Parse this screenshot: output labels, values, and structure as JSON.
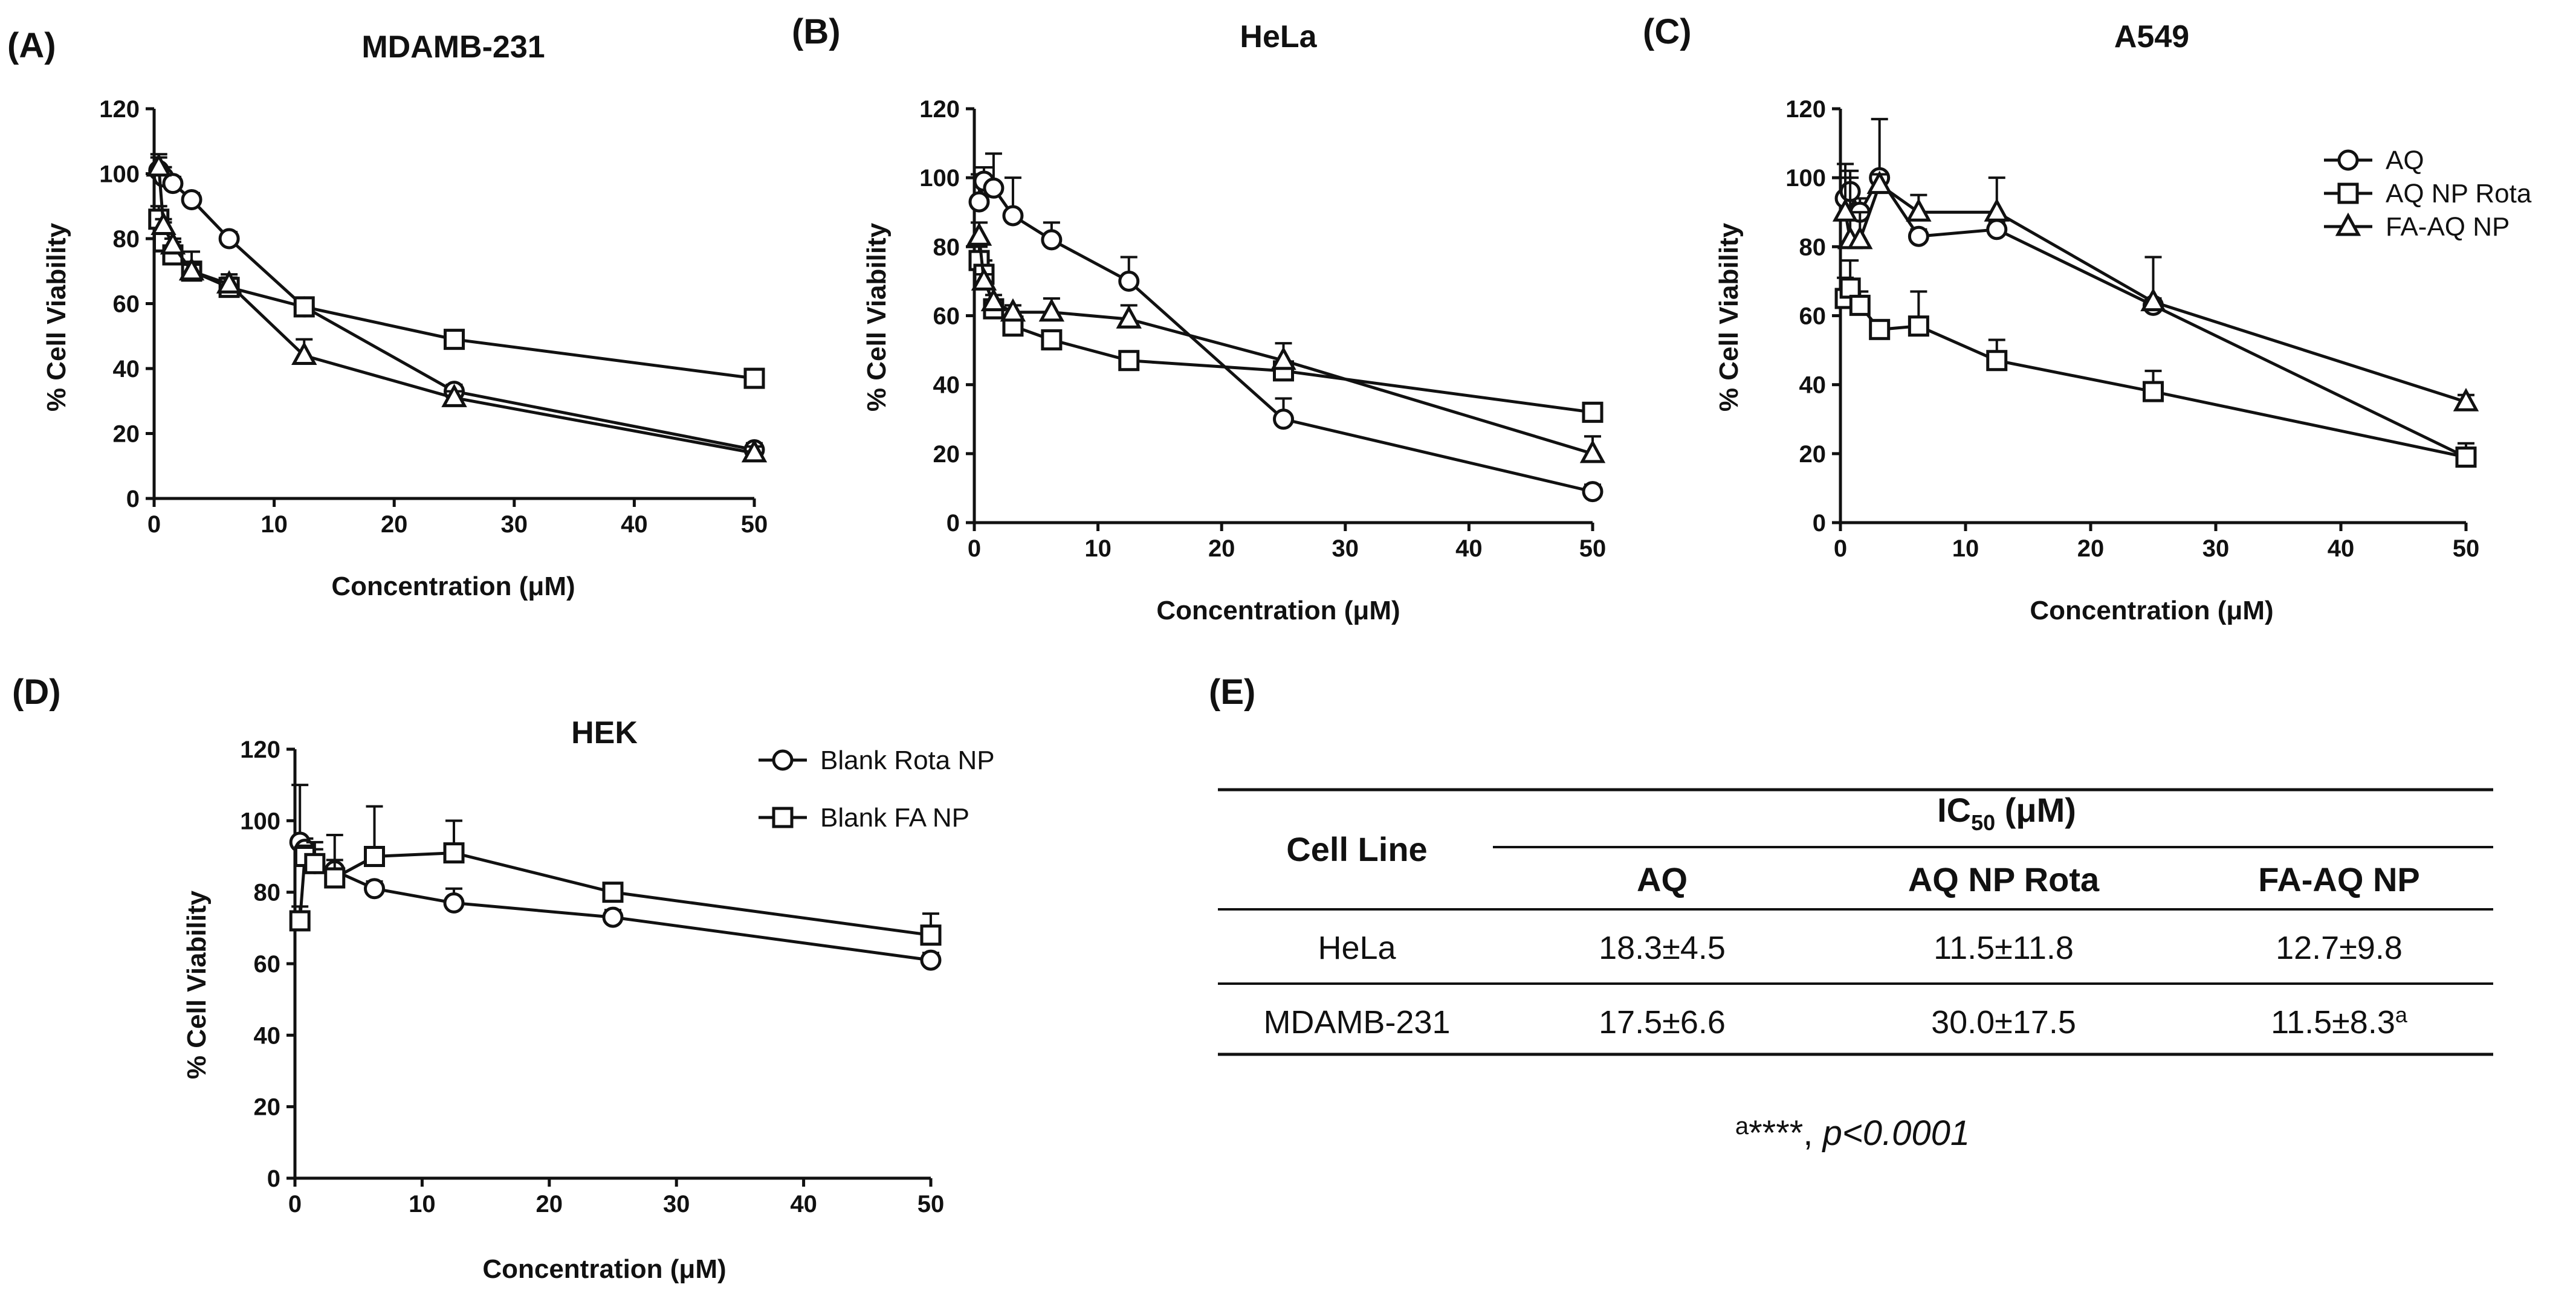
{
  "panels": [
    {
      "tag": "(A)",
      "title": "MDAMB-231",
      "ylabel": "% Cell Viability",
      "xlabel": "Concentration (μM)",
      "xticks": [
        0,
        10,
        20,
        30,
        40,
        50
      ],
      "yticks": [
        0,
        20,
        40,
        60,
        80,
        100,
        120
      ],
      "legend": [],
      "chart_data": {
        "type": "line",
        "xlim": [
          0,
          50
        ],
        "ylim": [
          0,
          120
        ],
        "series": [
          {
            "marker": "circle",
            "x": [
              0.39,
              0.78,
              1.56,
              3.125,
              6.25,
              12.5,
              25,
              50
            ],
            "y": [
              101,
              99,
              97,
              92,
              80,
              59,
              33,
              15
            ],
            "err": [
              5,
              3,
              2,
              2,
              2,
              2,
              2,
              2
            ]
          },
          {
            "marker": "square",
            "x": [
              0.39,
              0.78,
              1.56,
              3.125,
              6.25,
              12.5,
              25,
              50
            ],
            "y": [
              86,
              79,
              75,
              70,
              65,
              59,
              49,
              37
            ],
            "err": [
              4,
              6,
              4,
              6,
              4,
              2,
              2,
              2
            ]
          },
          {
            "marker": "triangle",
            "x": [
              0.39,
              0.78,
              1.56,
              3.125,
              6.25,
              12.5,
              25,
              50
            ],
            "y": [
              102,
              84,
              78,
              70,
              66,
              44,
              31,
              14
            ],
            "err": [
              3,
              2,
              2,
              2,
              2,
              5,
              2,
              2
            ]
          }
        ]
      }
    },
    {
      "tag": "(B)",
      "title": "HeLa",
      "ylabel": "% Cell Viability",
      "xlabel": "Concentration (μM)",
      "xticks": [
        0,
        10,
        20,
        30,
        40,
        50
      ],
      "yticks": [
        0,
        20,
        40,
        60,
        80,
        100,
        120
      ],
      "legend": [],
      "chart_data": {
        "type": "line",
        "xlim": [
          0,
          50
        ],
        "ylim": [
          0,
          120
        ],
        "series": [
          {
            "marker": "circle",
            "x": [
              0.39,
              0.78,
              1.56,
              3.125,
              6.25,
              12.5,
              25,
              50
            ],
            "y": [
              93,
              99,
              97,
              89,
              82,
              70,
              30,
              9
            ],
            "err": [
              8,
              4,
              10,
              11,
              5,
              7,
              6,
              2
            ]
          },
          {
            "marker": "square",
            "x": [
              0.39,
              0.78,
              1.56,
              3.125,
              6.25,
              12.5,
              25,
              50
            ],
            "y": [
              76,
              72,
              62,
              57,
              53,
              47,
              44,
              32
            ],
            "err": [
              4,
              4,
              2,
              2,
              2,
              2,
              2,
              2
            ]
          },
          {
            "marker": "triangle",
            "x": [
              0.39,
              0.78,
              1.56,
              3.125,
              6.25,
              12.5,
              25,
              50
            ],
            "y": [
              83,
              70,
              64,
              61,
              61,
              59,
              47,
              20
            ],
            "err": [
              4,
              2,
              2,
              2,
              4,
              4,
              5,
              5
            ]
          }
        ]
      }
    },
    {
      "tag": "(C)",
      "title": "A549",
      "ylabel": "% Cell Viability",
      "xlabel": "Concentration (μM)",
      "xticks": [
        0,
        10,
        20,
        30,
        40,
        50
      ],
      "yticks": [
        0,
        20,
        40,
        60,
        80,
        100,
        120
      ],
      "legend": [
        "AQ",
        "AQ NP Rota",
        "FA-AQ NP"
      ],
      "chart_data": {
        "type": "line",
        "xlim": [
          0,
          50
        ],
        "ylim": [
          0,
          120
        ],
        "series": [
          {
            "name": "AQ",
            "marker": "circle",
            "x": [
              0.39,
              0.78,
              1.56,
              3.125,
              6.25,
              12.5,
              25,
              50
            ],
            "y": [
              94,
              96,
              90,
              100,
              83,
              85,
              63,
              19
            ],
            "err": [
              6,
              4,
              4,
              17,
              2,
              2,
              2,
              2
            ]
          },
          {
            "name": "AQ NP Rota",
            "marker": "square",
            "x": [
              0.39,
              0.78,
              1.56,
              3.125,
              6.25,
              12.5,
              25,
              50
            ],
            "y": [
              65,
              68,
              63,
              56,
              57,
              47,
              38,
              19
            ],
            "err": [
              6,
              8,
              4,
              2,
              10,
              6,
              6,
              4
            ]
          },
          {
            "name": "FA-AQ NP",
            "marker": "triangle",
            "x": [
              0.39,
              0.78,
              1.56,
              3.125,
              6.25,
              12.5,
              25,
              50
            ],
            "y": [
              90,
              82,
              82,
              98,
              90,
              90,
              64,
              35
            ],
            "err": [
              14,
              20,
              8,
              3,
              5,
              10,
              13,
              2
            ]
          }
        ]
      }
    },
    {
      "tag": "(D)",
      "title": "HEK",
      "ylabel": "% Cell Viability",
      "xlabel": "Concentration (μM)",
      "xticks": [
        0,
        10,
        20,
        30,
        40,
        50
      ],
      "yticks": [
        0,
        20,
        40,
        60,
        80,
        100,
        120
      ],
      "legend": [
        "Blank Rota NP",
        "Blank FA NP"
      ],
      "chart_data": {
        "type": "line",
        "xlim": [
          0,
          50
        ],
        "ylim": [
          0,
          120
        ],
        "series": [
          {
            "name": "Blank Rota NP",
            "marker": "circle",
            "x": [
              0.39,
              0.78,
              1.56,
              3.125,
              6.25,
              12.5,
              25,
              50
            ],
            "y": [
              94,
              92,
              88,
              86,
              81,
              77,
              73,
              61
            ],
            "err": [
              16,
              3,
              4,
              3,
              2,
              4,
              2,
              2
            ]
          },
          {
            "name": "Blank FA NP",
            "marker": "square",
            "x": [
              0.39,
              0.78,
              1.56,
              3.125,
              6.25,
              12.5,
              25,
              50
            ],
            "y": [
              72,
              90,
              88,
              84,
              90,
              91,
              80,
              68
            ],
            "err": [
              4,
              3,
              6,
              12,
              14,
              9,
              2,
              6
            ]
          }
        ]
      }
    }
  ],
  "table": {
    "tag": "(E)",
    "col_header": "Cell Line",
    "group_header": "IC",
    "group_sub": "50",
    "group_unit": " (μM)",
    "columns": [
      "AQ",
      "AQ NP Rota",
      "FA-AQ NP"
    ],
    "rows": [
      {
        "cells": [
          "HeLa",
          "18.3±4.5",
          "11.5±11.8",
          "12.7±9.8"
        ],
        "sup": ""
      },
      {
        "cells": [
          "MDAMB-231",
          "17.5±6.6",
          "30.0±17.5",
          "11.5±8.3"
        ],
        "sup": "a"
      }
    ],
    "footnote_sup": "a",
    "footnote_stars": "****, ",
    "footnote_p": "p<0.0001"
  }
}
